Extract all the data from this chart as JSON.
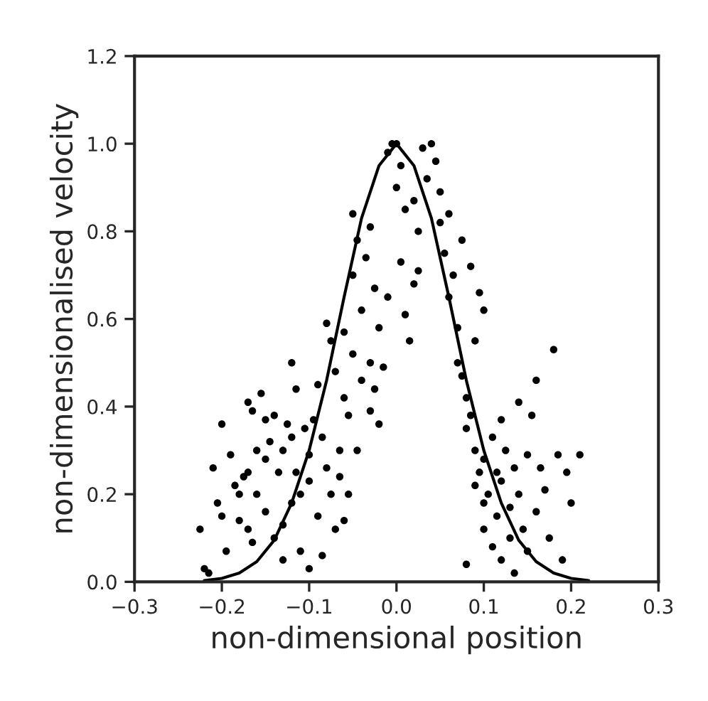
{
  "chart_data": {
    "type": "scatter",
    "xlabel": "non-dimensional position",
    "ylabel": "non-dimensionalised velocity",
    "xlim": [
      -0.3,
      0.3
    ],
    "ylim": [
      0,
      1.2
    ],
    "xticks": [
      {
        "value": -0.3,
        "label": "−0.3"
      },
      {
        "value": -0.2,
        "label": "−0.2"
      },
      {
        "value": -0.1,
        "label": "−0.1"
      },
      {
        "value": 0,
        "label": "0.0"
      },
      {
        "value": 0.1,
        "label": "0.1"
      },
      {
        "value": 0.2,
        "label": "0.2"
      },
      {
        "value": 0.3,
        "label": "0.3"
      }
    ],
    "yticks": [
      {
        "value": 0,
        "label": "0.0"
      },
      {
        "value": 0.2,
        "label": "0.2"
      },
      {
        "value": 0.4,
        "label": "0.4"
      },
      {
        "value": 0.6,
        "label": "0.6"
      },
      {
        "value": 0.8,
        "label": "0.8"
      },
      {
        "value": 1,
        "label": "1.0"
      },
      {
        "value": 1.2,
        "label": "1.2"
      }
    ],
    "grid": false,
    "legend": false,
    "marker": "circle",
    "series": [
      {
        "color": "#000000",
        "x": [
          -0.22,
          -0.215,
          -0.225,
          -0.21,
          -0.2,
          -0.205,
          -0.2,
          -0.195,
          -0.19,
          -0.185,
          -0.18,
          -0.18,
          -0.175,
          -0.17,
          -0.17,
          -0.165,
          -0.17,
          -0.165,
          -0.16,
          -0.16,
          -0.155,
          -0.15,
          -0.15,
          -0.15,
          -0.145,
          -0.14,
          -0.14,
          -0.135,
          -0.13,
          -0.13,
          -0.13,
          -0.125,
          -0.12,
          -0.12,
          -0.12,
          -0.115,
          -0.115,
          -0.11,
          -0.11,
          -0.105,
          -0.1,
          -0.1,
          -0.1,
          -0.095,
          -0.09,
          -0.09,
          -0.085,
          -0.085,
          -0.08,
          -0.08,
          -0.075,
          -0.075,
          -0.07,
          -0.07,
          -0.065,
          -0.065,
          -0.06,
          -0.06,
          -0.055,
          -0.05,
          -0.05,
          -0.05,
          -0.045,
          -0.045,
          -0.04,
          -0.04,
          -0.035,
          -0.03,
          -0.03,
          -0.03,
          -0.025,
          -0.025,
          -0.02,
          -0.02,
          -0.015,
          -0.01,
          -0.005,
          0.0,
          0.0,
          -0.01,
          0.005,
          0.005,
          0.01,
          0.01,
          0.015,
          0.02,
          0.02,
          0.025,
          0.025,
          0.03,
          0.035,
          0.04,
          0.045,
          0.05,
          0.05,
          0.055,
          0.06,
          0.06,
          0.065,
          0.07,
          0.07,
          0.075,
          0.08,
          0.08,
          0.085,
          0.09,
          0.09,
          0.095,
          0.1,
          0.1,
          0.1,
          0.105,
          0.11,
          0.11,
          0.115,
          0.115,
          0.12,
          0.12,
          0.125,
          0.13,
          0.13,
          0.135,
          0.135,
          0.14,
          0.14,
          0.145,
          0.15,
          0.15,
          0.155,
          0.16,
          0.16,
          0.165,
          0.17,
          0.175,
          0.18,
          0.185,
          0.19,
          0.195,
          0.2,
          0.21,
          0.09,
          0.095,
          0.1,
          0.085,
          0.075,
          0.08,
          0.12,
          -0.06,
          -0.055
        ],
        "values": [
          0.03,
          0.02,
          0.12,
          0.26,
          0.36,
          0.18,
          0.15,
          0.07,
          0.29,
          0.22,
          0.14,
          0.2,
          0.24,
          0.25,
          0.41,
          0.39,
          0.12,
          0.09,
          0.2,
          0.3,
          0.43,
          0.37,
          0.28,
          0.16,
          0.32,
          0.38,
          0.1,
          0.25,
          0.13,
          0.3,
          0.05,
          0.36,
          0.18,
          0.33,
          0.5,
          0.44,
          0.25,
          0.07,
          0.2,
          0.35,
          0.03,
          0.29,
          0.23,
          0.37,
          0.45,
          0.15,
          0.06,
          0.33,
          0.59,
          0.26,
          0.2,
          0.55,
          0.12,
          0.48,
          0.3,
          0.24,
          0.57,
          0.42,
          0.38,
          0.84,
          0.7,
          0.52,
          0.78,
          0.3,
          0.62,
          0.46,
          0.74,
          0.81,
          0.5,
          0.39,
          0.67,
          0.44,
          0.58,
          0.36,
          0.49,
          0.98,
          1.0,
          1.0,
          0.9,
          0.65,
          0.95,
          0.73,
          0.85,
          0.61,
          0.55,
          0.87,
          0.68,
          0.8,
          0.71,
          0.99,
          0.92,
          1.0,
          0.96,
          0.89,
          0.82,
          0.75,
          0.84,
          0.65,
          0.7,
          0.58,
          0.5,
          0.47,
          0.42,
          0.35,
          0.38,
          0.3,
          0.22,
          0.25,
          0.18,
          0.28,
          0.12,
          0.2,
          0.33,
          0.08,
          0.15,
          0.25,
          0.05,
          0.23,
          0.3,
          0.17,
          0.1,
          0.02,
          0.26,
          0.41,
          0.2,
          0.12,
          0.29,
          0.07,
          0.38,
          0.46,
          0.16,
          0.26,
          0.21,
          0.1,
          0.53,
          0.29,
          0.05,
          0.25,
          0.18,
          0.29,
          0.55,
          0.66,
          0.62,
          0.72,
          0.78,
          0.04,
          0.37,
          0.14,
          0.2
        ]
      },
      {
        "type": "line",
        "color": "#000000",
        "marker": "none",
        "line_style": "solid",
        "x": [
          -0.22,
          -0.2,
          -0.18,
          -0.16,
          -0.14,
          -0.12,
          -0.1,
          -0.08,
          -0.06,
          -0.04,
          -0.02,
          0,
          0.02,
          0.04,
          0.06,
          0.08,
          0.1,
          0.12,
          0.14,
          0.16,
          0.18,
          0.2,
          0.22
        ],
        "values": [
          0.003,
          0.008,
          0.02,
          0.046,
          0.095,
          0.18,
          0.3,
          0.46,
          0.65,
          0.83,
          0.95,
          1,
          0.95,
          0.83,
          0.65,
          0.46,
          0.3,
          0.18,
          0.095,
          0.046,
          0.02,
          0.008,
          0.003
        ]
      }
    ]
  }
}
